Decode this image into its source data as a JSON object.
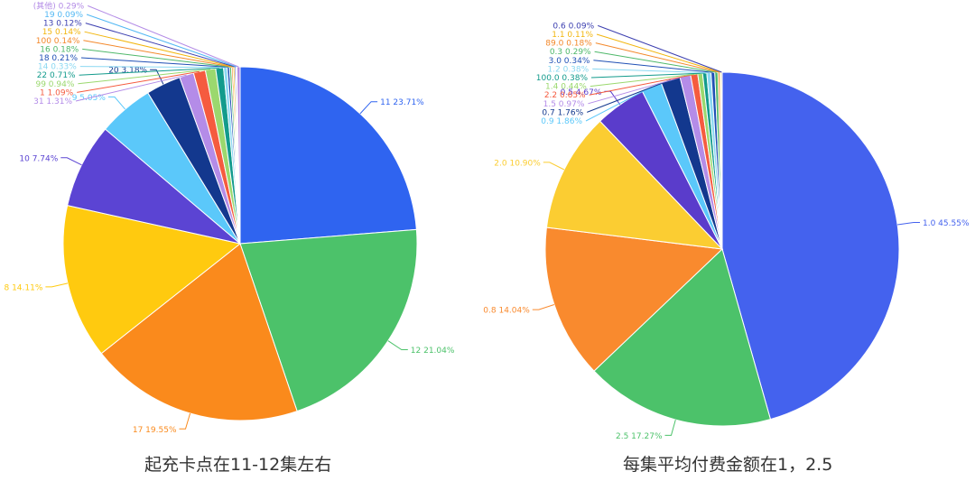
{
  "chart_data": [
    {
      "type": "pie",
      "caption": "起充卡点在11-12集左右",
      "slices": [
        {
          "label": "11",
          "pct": "23.71%",
          "value": 23.71,
          "color": "#2F64F0"
        },
        {
          "label": "12",
          "pct": "21.04%",
          "value": 21.04,
          "color": "#4CC26A"
        },
        {
          "label": "17",
          "pct": "19.55%",
          "value": 19.55,
          "color": "#FA8A1C"
        },
        {
          "label": "8",
          "pct": "14.11%",
          "value": 14.11,
          "color": "#FFCA0F"
        },
        {
          "label": "10",
          "pct": "7.74%",
          "value": 7.74,
          "color": "#5B44D3"
        },
        {
          "label": "9",
          "pct": "5.05%",
          "value": 5.05,
          "color": "#5BC8FA"
        },
        {
          "label": "20",
          "pct": "3.18%",
          "value": 3.18,
          "color": "#13388E"
        },
        {
          "label": "31",
          "pct": "1.31%",
          "value": 1.31,
          "color": "#B48CE8"
        },
        {
          "label": "1",
          "pct": "1.09%",
          "value": 1.09,
          "color": "#F55B3F"
        },
        {
          "label": "99",
          "pct": "0.94%",
          "value": 0.94,
          "color": "#9BD86E"
        },
        {
          "label": "22",
          "pct": "0.71%",
          "value": 0.71,
          "color": "#139B8C"
        },
        {
          "label": "14",
          "pct": "0.33%",
          "value": 0.33,
          "color": "#8BD8F2"
        },
        {
          "label": "18",
          "pct": "0.21%",
          "value": 0.21,
          "color": "#2050B5"
        },
        {
          "label": "16",
          "pct": "0.18%",
          "value": 0.18,
          "color": "#4FB86A"
        },
        {
          "label": "100",
          "pct": "0.14%",
          "value": 0.14,
          "color": "#F3882A"
        },
        {
          "label": "15",
          "pct": "0.14%",
          "value": 0.14,
          "color": "#F2B60E"
        },
        {
          "label": "13",
          "pct": "0.12%",
          "value": 0.12,
          "color": "#3C3FB0"
        },
        {
          "label": "19",
          "pct": "0.09%",
          "value": 0.09,
          "color": "#52B8F4"
        },
        {
          "label": "(其他)",
          "pct": "0.29%",
          "value": 0.29,
          "color": "#B38BE6"
        }
      ]
    },
    {
      "type": "pie",
      "caption": "每集平均付费金额在1，2.5",
      "slices": [
        {
          "label": "1.0",
          "pct": "45.55%",
          "value": 45.55,
          "color": "#4462EE"
        },
        {
          "label": "2.5",
          "pct": "17.27%",
          "value": 17.27,
          "color": "#4CC26A"
        },
        {
          "label": "0.8",
          "pct": "14.04%",
          "value": 14.04,
          "color": "#F98A2E"
        },
        {
          "label": "2.0",
          "pct": "10.90%",
          "value": 10.9,
          "color": "#FBCD32"
        },
        {
          "label": "0.5",
          "pct": "4.67%",
          "value": 4.67,
          "color": "#5A3CCB"
        },
        {
          "label": "0.9",
          "pct": "1.86%",
          "value": 1.86,
          "color": "#5BC8FA"
        },
        {
          "label": "0.7",
          "pct": "1.76%",
          "value": 1.76,
          "color": "#13388E"
        },
        {
          "label": "1.5",
          "pct": "0.97%",
          "value": 0.97,
          "color": "#B48CE8"
        },
        {
          "label": "2.2",
          "pct": "0.65%",
          "value": 0.65,
          "color": "#F55B3F"
        },
        {
          "label": "1.4",
          "pct": "0.44%",
          "value": 0.44,
          "color": "#9BD86E"
        },
        {
          "label": "100.0",
          "pct": "0.38%",
          "value": 0.38,
          "color": "#139B8C"
        },
        {
          "label": "1.2",
          "pct": "0.38%",
          "value": 0.38,
          "color": "#8BD8F2"
        },
        {
          "label": "3.0",
          "pct": "0.34%",
          "value": 0.34,
          "color": "#2050B5"
        },
        {
          "label": "0.3",
          "pct": "0.29%",
          "value": 0.29,
          "color": "#4FB86A"
        },
        {
          "label": "89.0",
          "pct": "0.18%",
          "value": 0.18,
          "color": "#F3882A"
        },
        {
          "label": "1.1",
          "pct": "0.11%",
          "value": 0.11,
          "color": "#F2B60E"
        },
        {
          "label": "0.6",
          "pct": "0.09%",
          "value": 0.09,
          "color": "#3C3FB0"
        }
      ]
    }
  ]
}
